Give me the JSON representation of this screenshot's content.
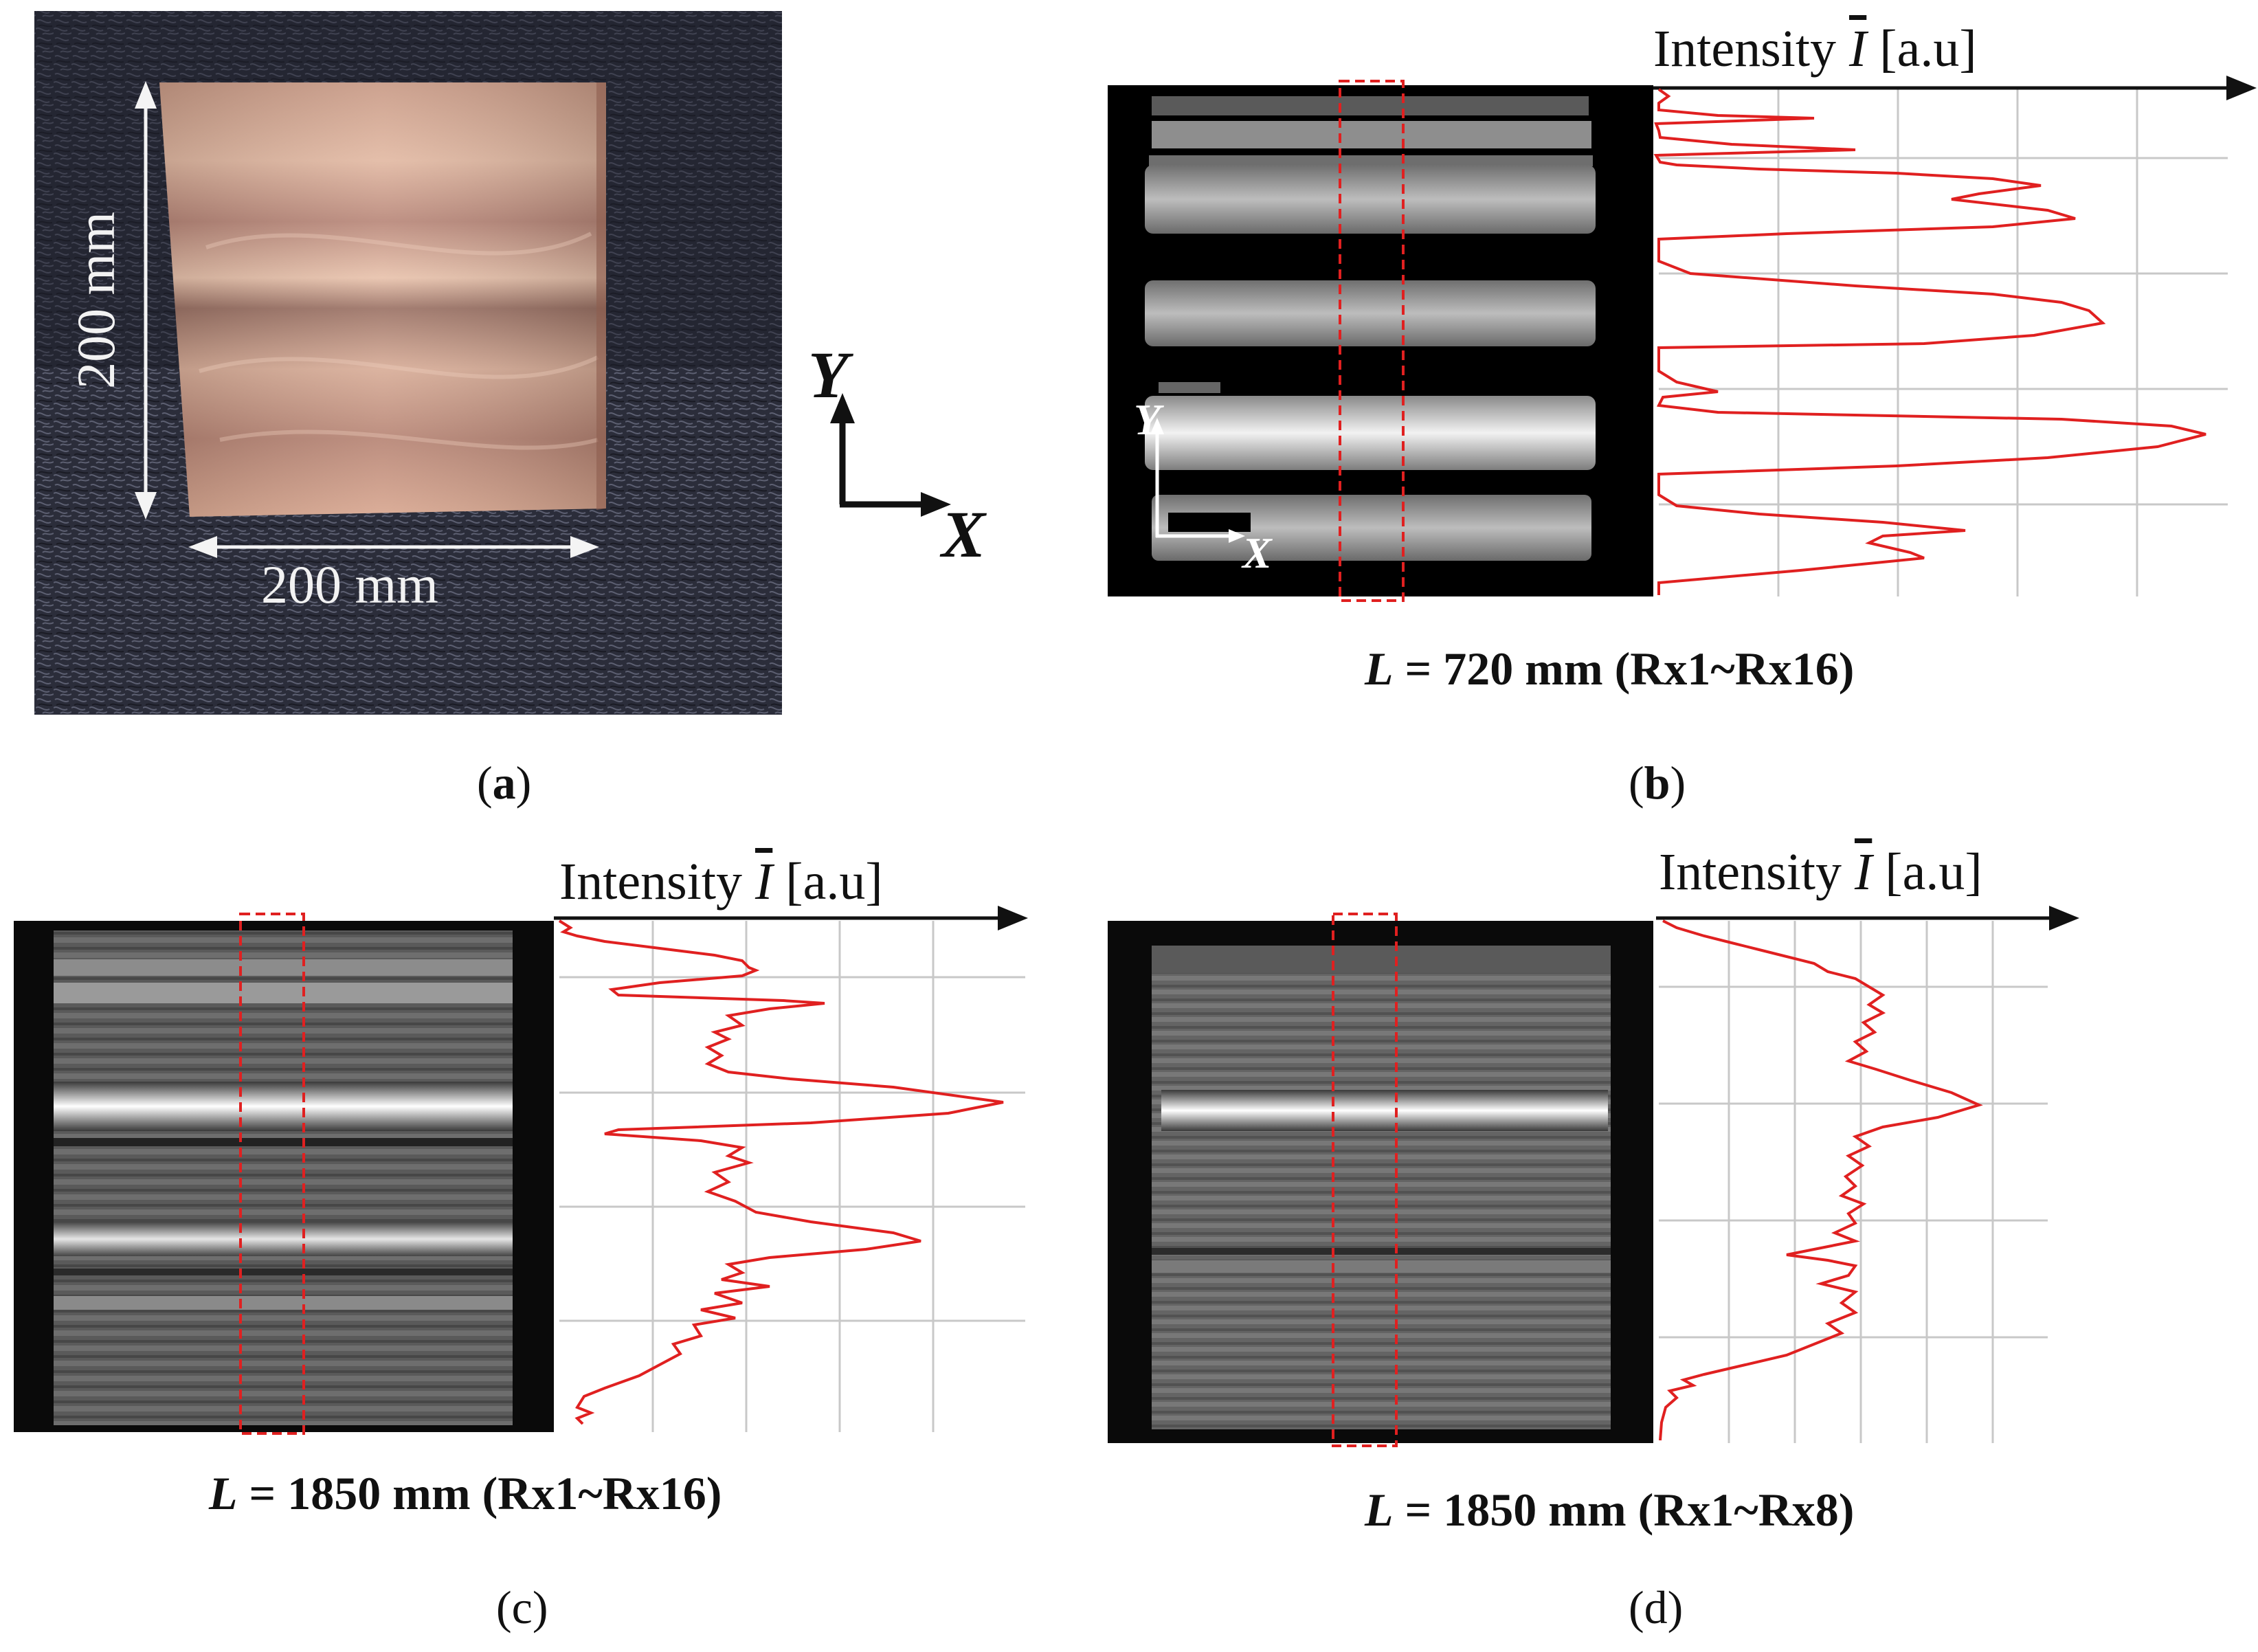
{
  "panel_a": {
    "label": "a",
    "dim_vertical": "200 mm",
    "dim_horizontal": "200 mm"
  },
  "coord_axes": {
    "x": "X",
    "y": "Y"
  },
  "panel_b": {
    "label": "b",
    "axis_title_pre": "Intensity ",
    "axis_title_symbol": "I",
    "axis_title_unit": "[a.u]",
    "caption_var": "L",
    "caption_rest": " = 720 mm (Rx1~Rx16)",
    "inset_axis_x": "X",
    "inset_axis_y": "Y",
    "profile_color": "#e02020"
  },
  "panel_c": {
    "label": "c",
    "axis_title_pre": "Intensity ",
    "axis_title_symbol": "I",
    "axis_title_unit": "[a.u]",
    "caption_var": "L",
    "caption_rest": " = 1850 mm (Rx1~Rx16)",
    "profile_color": "#e02020"
  },
  "panel_d": {
    "label": "d",
    "axis_title_pre": "Intensity ",
    "axis_title_symbol": "I",
    "axis_title_unit": "[a.u]",
    "caption_var": "L",
    "caption_rest": " = 1850 mm (Rx1~Rx8)",
    "profile_color": "#e02020"
  }
}
